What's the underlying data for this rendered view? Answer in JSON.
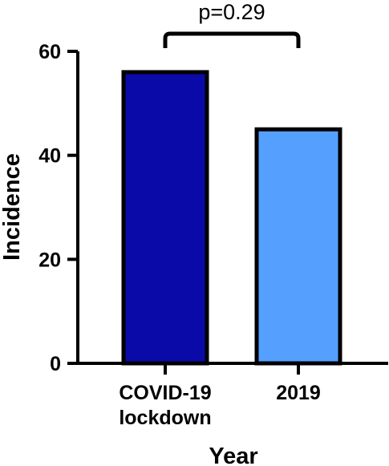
{
  "chart_data": {
    "type": "bar",
    "categories": [
      {
        "lines": [
          "COVID-19",
          "lockdown"
        ]
      },
      {
        "lines": [
          "2019"
        ]
      }
    ],
    "values": [
      56,
      45
    ],
    "colors": [
      "#0a0aa8",
      "#55a0ff"
    ],
    "xlabel": "Year",
    "ylabel": "Incidence",
    "ylim": [
      0,
      60
    ],
    "yticks": [
      0,
      20,
      40,
      60
    ],
    "yticklabels": [
      "0",
      "20",
      "40",
      "60"
    ],
    "annotation": {
      "text": "p=0.29",
      "between": [
        0,
        1
      ]
    },
    "grid": false
  }
}
